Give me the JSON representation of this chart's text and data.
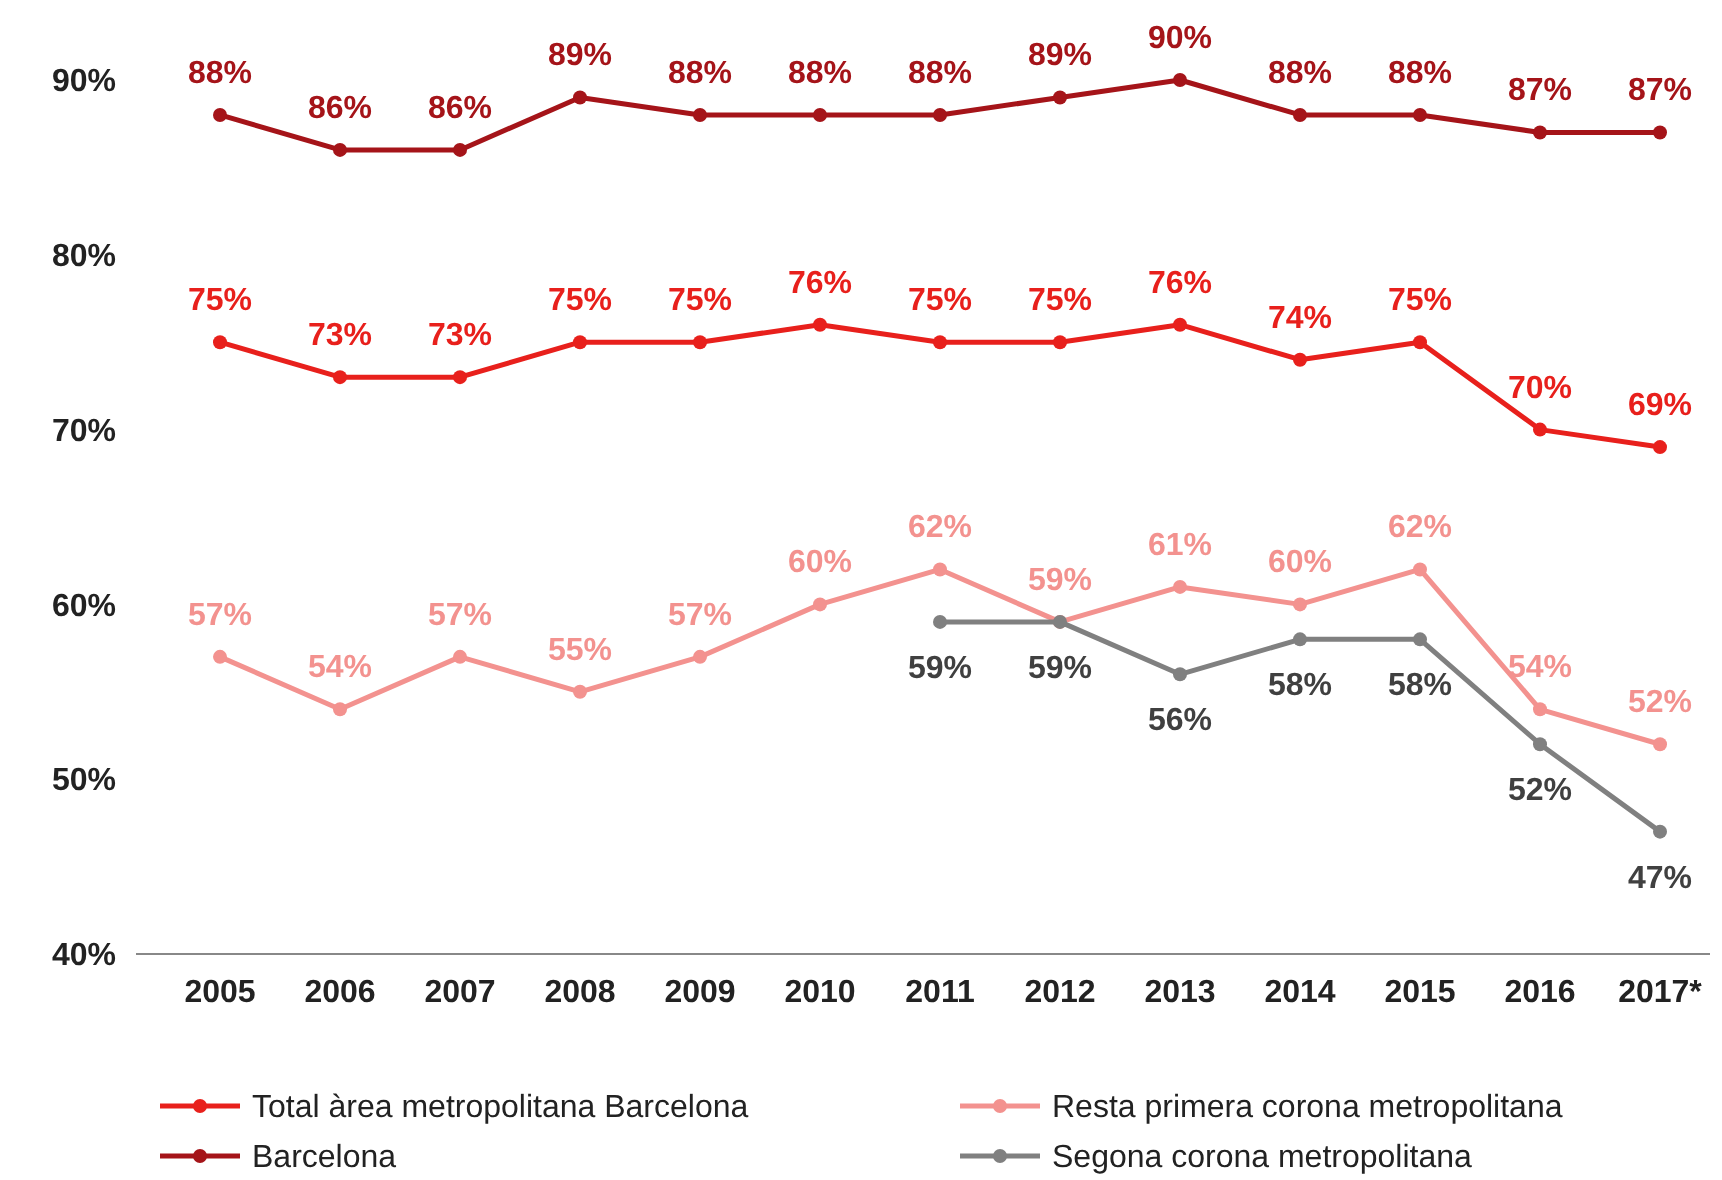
{
  "chart_data": {
    "type": "line",
    "categories": [
      "2005",
      "2006",
      "2007",
      "2008",
      "2009",
      "2010",
      "2011",
      "2012",
      "2013",
      "2014",
      "2015",
      "2016",
      "2017*"
    ],
    "series": [
      {
        "name": "Total àrea metropolitana Barcelona",
        "color": "#e8201c",
        "values": [
          75,
          73,
          73,
          75,
          75,
          76,
          75,
          75,
          76,
          74,
          75,
          70,
          69
        ],
        "value_labels": [
          "75%",
          "73%",
          "73%",
          "75%",
          "75%",
          "76%",
          "75%",
          "75%",
          "76%",
          "74%",
          "75%",
          "70%",
          "69%"
        ]
      },
      {
        "name": "Barcelona",
        "color": "#a51419",
        "values": [
          88,
          86,
          86,
          89,
          88,
          88,
          88,
          89,
          90,
          88,
          88,
          87,
          87
        ],
        "value_labels": [
          "88%",
          "86%",
          "86%",
          "89%",
          "88%",
          "88%",
          "88%",
          "89%",
          "90%",
          "88%",
          "88%",
          "87%",
          "87%"
        ]
      },
      {
        "name": "Resta primera corona metropolitana",
        "color": "#f3928f",
        "values": [
          57,
          54,
          57,
          55,
          57,
          60,
          62,
          59,
          61,
          60,
          62,
          54,
          52
        ],
        "value_labels": [
          "57%",
          "54%",
          "57%",
          "55%",
          "57%",
          "60%",
          "62%",
          "59%",
          "61%",
          "60%",
          "62%",
          "54%",
          "52%"
        ]
      },
      {
        "name": "Segona corona metropolitana",
        "color": "#808080",
        "values": [
          null,
          null,
          null,
          null,
          null,
          null,
          59,
          59,
          56,
          58,
          58,
          52,
          47
        ],
        "value_labels": [
          null,
          null,
          null,
          null,
          null,
          null,
          "59%",
          "59%",
          "56%",
          "58%",
          "58%",
          "52%",
          "47%"
        ]
      }
    ],
    "ylim": [
      40,
      90
    ],
    "yticks": [
      {
        "value": 40,
        "label": "40%"
      },
      {
        "value": 50,
        "label": "50%"
      },
      {
        "value": 60,
        "label": "60%"
      },
      {
        "value": 70,
        "label": "70%"
      },
      {
        "value": 80,
        "label": "80%"
      },
      {
        "value": 90,
        "label": "90%"
      }
    ],
    "grid": false,
    "legend": "bottom",
    "marker": "circle",
    "line_style": "solid"
  }
}
